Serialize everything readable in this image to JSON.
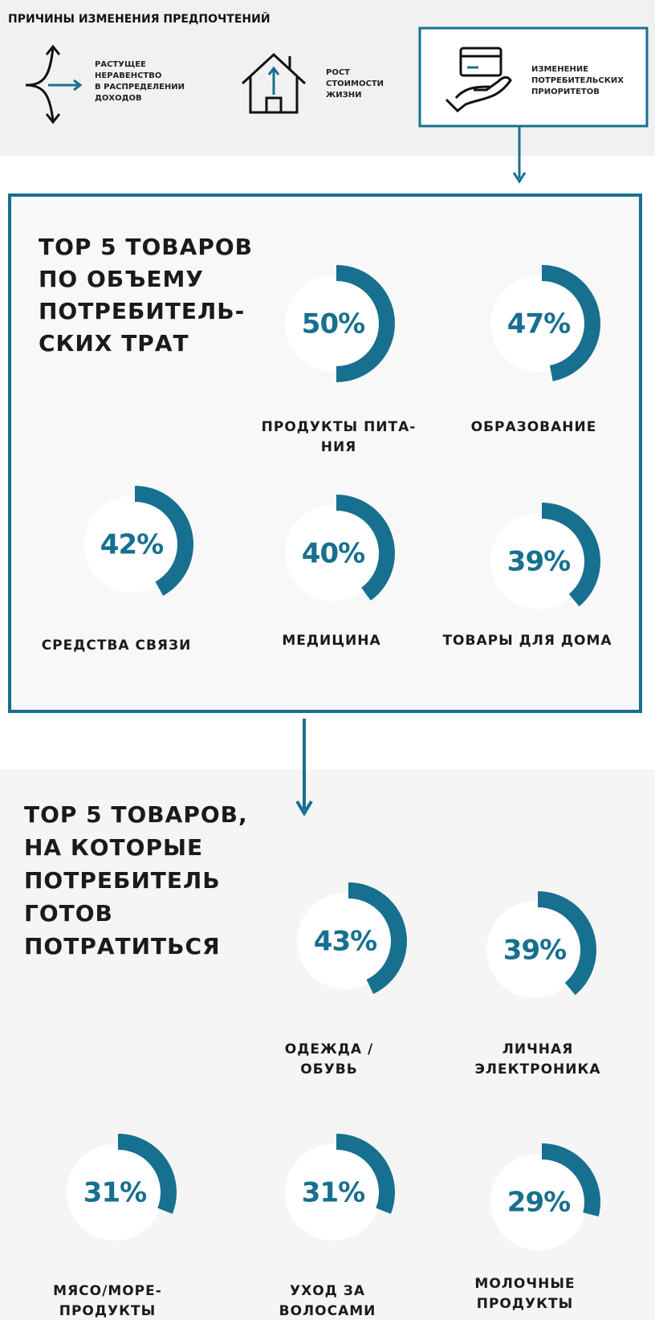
{
  "header": {
    "title": "ПРИЧИНЫ ИЗМЕНЕНИЯ ПРЕДПОЧТЕНИЙ",
    "reasons": [
      {
        "lines": [
          "РАСТУЩЕЕ",
          "НЕРАВЕНСТВО",
          "В РАСПРЕДЕЛЕНИИ",
          "ДОХОДОВ"
        ]
      },
      {
        "lines": [
          "РОСТ",
          "СТОИМОСТИ",
          "ЖИЗНИ"
        ]
      },
      {
        "lines": [
          "ИЗМЕНЕНИЕ",
          "ПОТРЕБИТЕЛЬСКИХ",
          "ПРИОРИТЕТОВ"
        ]
      }
    ]
  },
  "sections": [
    {
      "title": [
        "TOP 5 ТОВАРОВ",
        "ПО ОБЪЕМУ",
        "ПОТРЕБИТЕЛЬ-",
        "СКИХ ТРАТ"
      ],
      "items": [
        {
          "value": 50,
          "value_label": "50%",
          "label": [
            "ПРОДУКТЫ ПИТА-",
            "НИЯ"
          ]
        },
        {
          "value": 47,
          "value_label": "47%",
          "label": [
            "ОБРАЗОВАНИЕ"
          ]
        },
        {
          "value": 42,
          "value_label": "42%",
          "label": [
            "СРЕДСТВА СВЯЗИ"
          ]
        },
        {
          "value": 40,
          "value_label": "40%",
          "label": [
            "МЕДИЦИНА"
          ]
        },
        {
          "value": 39,
          "value_label": "39%",
          "label": [
            "ТОВАРЫ ДЛЯ ДОМА"
          ]
        }
      ]
    },
    {
      "title": [
        "TOP 5 ТОВАРОВ,",
        "НА КОТОРЫЕ",
        "ПОТРЕБИТЕЛЬ",
        "ГОТОВ",
        "ПОТРАТИТЬСЯ"
      ],
      "items": [
        {
          "value": 43,
          "value_label": "43%",
          "label": [
            "ОДЕЖДА /",
            "ОБУВЬ"
          ]
        },
        {
          "value": 39,
          "value_label": "39%",
          "label": [
            "ЛИЧНАЯ",
            "ЭЛЕКТРОНИКА"
          ]
        },
        {
          "value": 31,
          "value_label": "31%",
          "label": [
            "МЯСО/МОРЕ-",
            "ПРОДУКТЫ"
          ]
        },
        {
          "value": 31,
          "value_label": "31%",
          "label": [
            "УХОД ЗА",
            "ВОЛОСАМИ"
          ]
        },
        {
          "value": 29,
          "value_label": "29%",
          "label": [
            "МОЛОЧНЫЕ",
            "ПРОДУКТЫ"
          ]
        }
      ]
    }
  ]
}
